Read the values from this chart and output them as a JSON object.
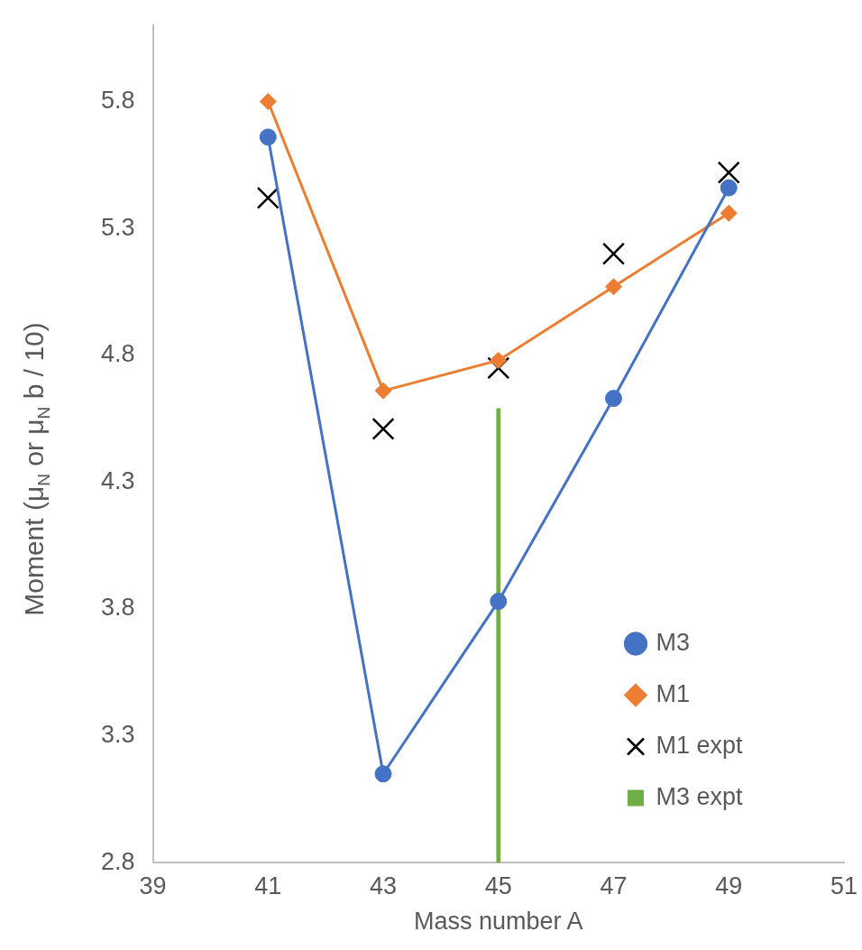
{
  "chart_data": {
    "type": "line",
    "xlabel": "Mass number A",
    "ylabel": "Moment (μ$_{N}$ or μ$_{N}$ b / 10)",
    "xlim": [
      39,
      51
    ],
    "xticks": [
      39,
      41,
      43,
      45,
      47,
      49,
      51
    ],
    "ylim": [
      2.8,
      6.1
    ],
    "yticks": [
      2.8,
      3.3,
      3.8,
      4.3,
      4.8,
      5.3,
      5.8
    ],
    "grid": false,
    "legend": "bottom right",
    "line_style": "solid",
    "series": [
      {
        "name": "M3",
        "marker": "circle",
        "color": "#4472c4",
        "x": [
          41,
          43,
          45,
          47,
          49
        ],
        "values": [
          5.66,
          3.15,
          3.83,
          4.63,
          5.46
        ]
      },
      {
        "name": "M1",
        "marker": "diamond",
        "color": "#ed7d31",
        "x": [
          41,
          43,
          45,
          47,
          49
        ],
        "values": [
          5.8,
          4.66,
          4.78,
          5.07,
          5.36
        ]
      },
      {
        "name": "M1 expt",
        "type": "scatter",
        "marker": "cross",
        "color": "#000000",
        "x": [
          41,
          43,
          45,
          47,
          49
        ],
        "values": [
          5.42,
          4.51,
          4.75,
          5.2,
          5.52
        ]
      },
      {
        "name": "M3 expt",
        "type": "bar",
        "color": "#70ad47",
        "x": [
          45
        ],
        "values": [
          4.59
        ]
      }
    ]
  }
}
